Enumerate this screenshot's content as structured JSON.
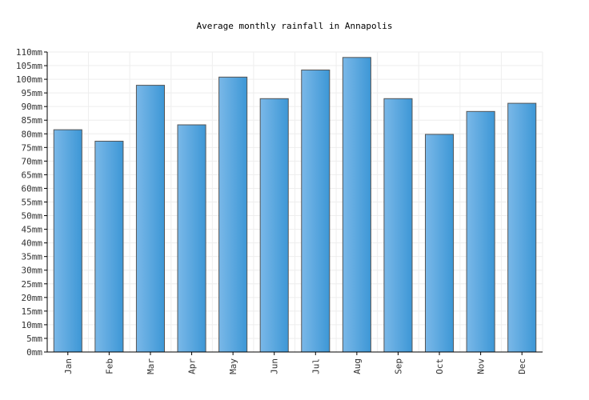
{
  "chart_data": {
    "type": "bar",
    "title": "Average monthly rainfall in Annapolis",
    "xlabel": "",
    "ylabel": "",
    "categories": [
      "Jan",
      "Feb",
      "Mar",
      "Apr",
      "May",
      "Jun",
      "Jul",
      "Aug",
      "Sep",
      "Oct",
      "Nov",
      "Dec"
    ],
    "values": [
      81.5,
      77.3,
      97.8,
      83.3,
      100.8,
      92.9,
      103.4,
      108.0,
      92.9,
      79.8,
      88.2,
      91.2
    ],
    "unit": "mm",
    "ylim": [
      0,
      110
    ],
    "ytick_step": 5,
    "grid": true,
    "colors": {
      "bar_light": "#7ab8e8",
      "bar_dark": "#3d97d6",
      "bar_stroke": "#555555",
      "grid": "#eeeeee"
    }
  }
}
